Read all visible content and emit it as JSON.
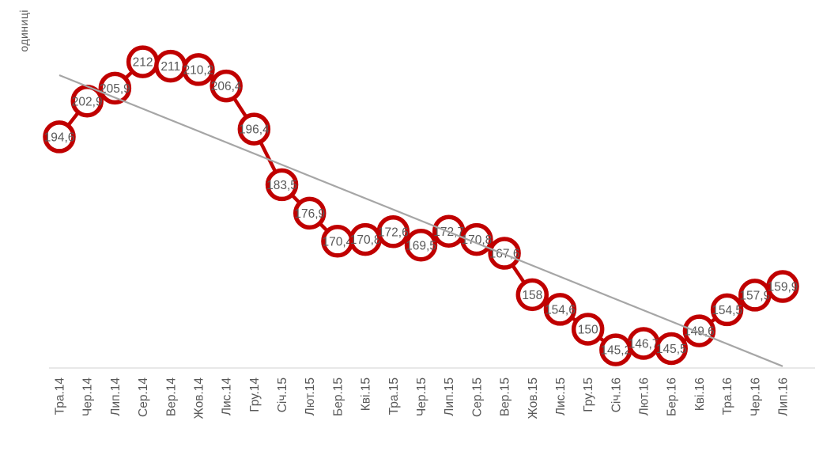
{
  "chart_data": {
    "type": "line",
    "title": "",
    "xlabel": "",
    "ylabel": "одиниці",
    "categories": [
      "Тра.14",
      "Чер.14",
      "Лип.14",
      "Сер.14",
      "Вер.14",
      "Жов.14",
      "Лис.14",
      "Гру.14",
      "Січ.15",
      "Лют.15",
      "Бер.15",
      "Кві.15",
      "Тра.15",
      "Чер.15",
      "Лип.15",
      "Сер.15",
      "Вер.15",
      "Жов.15",
      "Лис.15",
      "Гру.15",
      "Січ.16",
      "Лют.16",
      "Бер.16",
      "Кві.16",
      "Тра.16",
      "Чер.16",
      "Лип.16"
    ],
    "values": [
      194.6,
      202.9,
      205.9,
      212,
      211,
      210.2,
      206.4,
      196.4,
      183.5,
      176.9,
      170.4,
      170.8,
      172.6,
      169.5,
      172.7,
      170.8,
      167.6,
      158,
      154.6,
      150,
      145.2,
      146.7,
      145.5,
      149.6,
      154.5,
      157.9,
      159.9
    ],
    "labels": [
      "194,6",
      "202,9",
      "205,9",
      "212",
      "211",
      "210,2",
      "206,4",
      "196,4",
      "183,5",
      "176,9",
      "170,4",
      "170,8",
      "172,6",
      "169,5",
      "172,7",
      "170,8",
      "167,6",
      "158",
      "154,6",
      "150",
      "145,2",
      "146,7",
      "145,5",
      "149,6",
      "154,5",
      "157,9",
      "159,9"
    ],
    "ylim": [
      141,
      224.5
    ],
    "grid": false,
    "legend": "none",
    "series_color": "#C00000",
    "marker": {
      "fill": "#FFFFFF",
      "ring": "#C00000"
    },
    "label_color": "#595959",
    "axis_color": "#D9D9D9",
    "tick_label_color": "#595959",
    "trendline": {
      "color": "#A6A6A6",
      "start_value": 208.9,
      "end_value": 141.4
    }
  }
}
